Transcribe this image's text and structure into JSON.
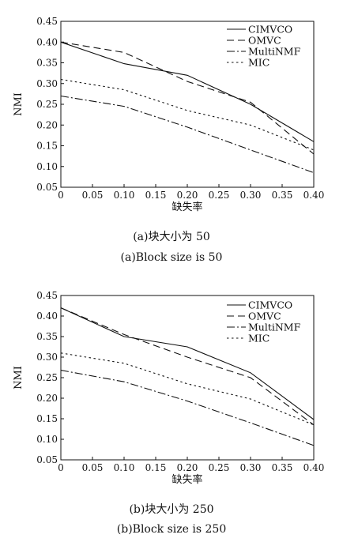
{
  "chart_data": [
    {
      "type": "line",
      "caption_zh": "(a)块大小为 50",
      "caption_en": "(a)Block size is 50",
      "xlabel": "缺失率",
      "ylabel": "NMI",
      "xlim": [
        0,
        0.4
      ],
      "ylim": [
        0.05,
        0.45
      ],
      "xticks": [
        "0",
        "0.05",
        "0.10",
        "0.15",
        "0.20",
        "0.25",
        "0.30",
        "0.35",
        "0.40"
      ],
      "yticks": [
        "0.05",
        "0.10",
        "0.15",
        "0.20",
        "0.25",
        "0.30",
        "0.35",
        "0.40",
        "0.45"
      ],
      "legend_position": "top-right",
      "grid": false,
      "x": [
        0,
        0.1,
        0.2,
        0.3,
        0.4
      ],
      "series": [
        {
          "name": "CIMVCO",
          "dash": "solid",
          "values": [
            0.4,
            0.348,
            0.32,
            0.25,
            0.16
          ]
        },
        {
          "name": "OMVC",
          "dash": "dashed",
          "values": [
            0.4,
            0.375,
            0.305,
            0.255,
            0.13
          ]
        },
        {
          "name": "MultiNMF",
          "dash": "dashdot",
          "values": [
            0.27,
            0.245,
            0.195,
            0.14,
            0.085
          ]
        },
        {
          "name": "MIC",
          "dash": "dotted",
          "values": [
            0.31,
            0.285,
            0.235,
            0.2,
            0.14
          ]
        }
      ]
    },
    {
      "type": "line",
      "caption_zh": "(b)块大小为 250",
      "caption_en": "(b)Block size is 250",
      "xlabel": "缺失率",
      "ylabel": "NMI",
      "xlim": [
        0,
        0.4
      ],
      "ylim": [
        0.05,
        0.45
      ],
      "xticks": [
        "0",
        "0.05",
        "0.10",
        "0.15",
        "0.20",
        "0.25",
        "0.30",
        "0.35",
        "0.40"
      ],
      "yticks": [
        "0.05",
        "0.10",
        "0.15",
        "0.20",
        "0.25",
        "0.30",
        "0.35",
        "0.40",
        "0.45"
      ],
      "legend_position": "top-right",
      "grid": false,
      "x": [
        0,
        0.1,
        0.2,
        0.3,
        0.4
      ],
      "series": [
        {
          "name": "CIMVCO",
          "dash": "solid",
          "values": [
            0.42,
            0.35,
            0.325,
            0.262,
            0.148
          ]
        },
        {
          "name": "OMVC",
          "dash": "dashed",
          "values": [
            0.42,
            0.355,
            0.3,
            0.25,
            0.135
          ]
        },
        {
          "name": "MultiNMF",
          "dash": "dashdot",
          "values": [
            0.268,
            0.24,
            0.193,
            0.14,
            0.085
          ]
        },
        {
          "name": "MIC",
          "dash": "dotted",
          "values": [
            0.31,
            0.285,
            0.235,
            0.198,
            0.135
          ]
        }
      ]
    }
  ]
}
